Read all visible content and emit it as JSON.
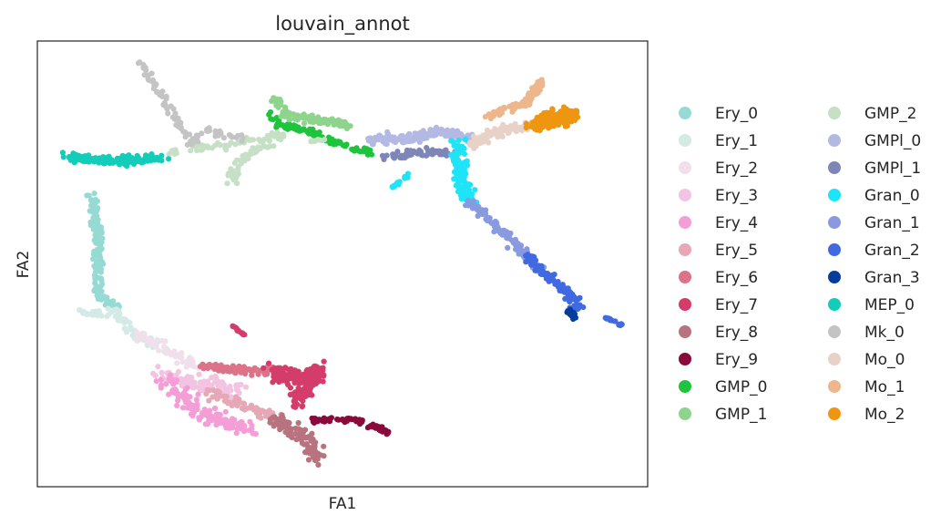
{
  "chart_data": {
    "type": "scatter",
    "title": "louvain_annot",
    "xlabel": "FA1",
    "ylabel": "FA2",
    "xlim": [
      0,
      100
    ],
    "ylim": [
      0,
      100
    ],
    "ticks_shown": false,
    "grid": false,
    "legend_position": "right",
    "legend_columns": 2,
    "series": [
      {
        "name": "Ery_0",
        "color": "#96dbd3"
      },
      {
        "name": "Ery_1",
        "color": "#d3eae6"
      },
      {
        "name": "Ery_2",
        "color": "#f1dfec"
      },
      {
        "name": "Ery_3",
        "color": "#f3c3e2"
      },
      {
        "name": "Ery_4",
        "color": "#f59dd6"
      },
      {
        "name": "Ery_5",
        "color": "#e6a8b6"
      },
      {
        "name": "Ery_6",
        "color": "#dd7388"
      },
      {
        "name": "Ery_7",
        "color": "#d43d6b"
      },
      {
        "name": "Ery_8",
        "color": "#b8737f"
      },
      {
        "name": "Ery_9",
        "color": "#8a0a3c"
      },
      {
        "name": "GMP_0",
        "color": "#1ec43c"
      },
      {
        "name": "GMP_1",
        "color": "#8ed48d"
      },
      {
        "name": "GMP_2",
        "color": "#c6e0c6"
      },
      {
        "name": "GMPl_0",
        "color": "#b4b9e4"
      },
      {
        "name": "GMPl_1",
        "color": "#7e86b8"
      },
      {
        "name": "Gran_0",
        "color": "#1fe4f7"
      },
      {
        "name": "Gran_1",
        "color": "#8a9ae0"
      },
      {
        "name": "Gran_2",
        "color": "#4169e1"
      },
      {
        "name": "Gran_3",
        "color": "#053d9e"
      },
      {
        "name": "MEP_0",
        "color": "#12cdb9"
      },
      {
        "name": "Mk_0",
        "color": "#c4c4c4"
      },
      {
        "name": "Mo_0",
        "color": "#e8d1c6"
      },
      {
        "name": "Mo_1",
        "color": "#eeb68c"
      },
      {
        "name": "Mo_2",
        "color": "#ee9610"
      }
    ]
  }
}
